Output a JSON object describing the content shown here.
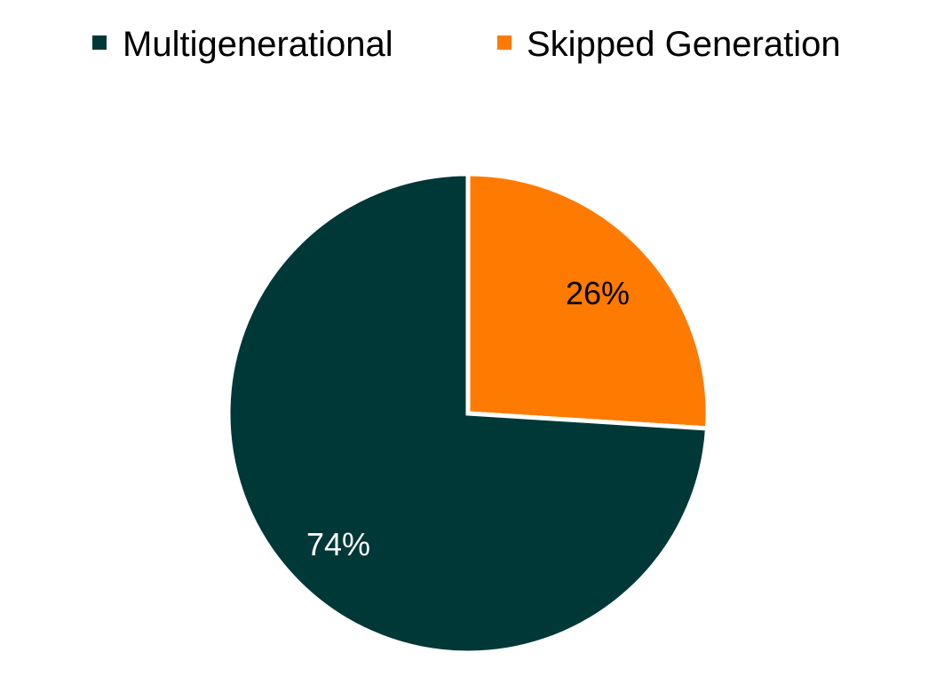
{
  "chart_data": {
    "type": "pie",
    "title": "",
    "legend_position": "top",
    "start_angle_deg": 0,
    "direction": "clockwise",
    "slices": [
      {
        "name": "Skipped Generation",
        "value": 26,
        "label": "26%",
        "color": "#FF7A00",
        "label_color": "#000000"
      },
      {
        "name": "Multigenerational",
        "value": 74,
        "label": "74%",
        "color": "#003838",
        "label_color": "#FFFFFF"
      }
    ],
    "legend": [
      {
        "name": "Multigenerational",
        "color": "#003838"
      },
      {
        "name": "Skipped Generation",
        "color": "#FF7A00"
      }
    ]
  }
}
